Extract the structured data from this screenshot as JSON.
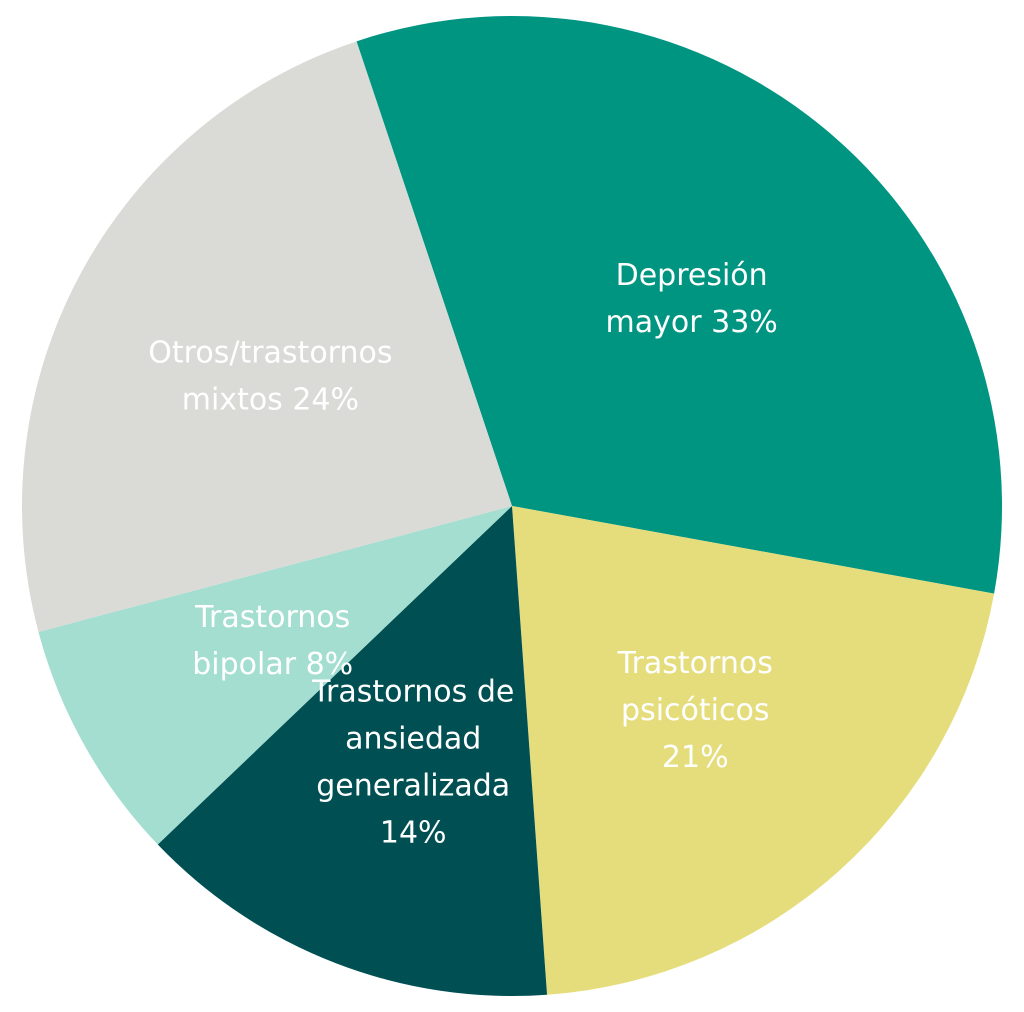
{
  "chart_data": {
    "type": "pie",
    "title": "",
    "start_angle_deg": -18.5,
    "direction": "clockwise",
    "slices": [
      {
        "label_lines": [
          "Depresión",
          "mayor 33%"
        ],
        "value": 33,
        "color": "#009581",
        "label_color": "#ffffff"
      },
      {
        "label_lines": [
          "Trastornos",
          "psicóticos",
          "21%"
        ],
        "value": 21,
        "color": "#e5dd7c",
        "label_color": "#ffffff"
      },
      {
        "label_lines": [
          "Trastornos de",
          "ansiedad",
          "generalizada",
          "14%"
        ],
        "value": 14,
        "color": "#004f53",
        "label_color": "#ffffff"
      },
      {
        "label_lines": [
          "Trastornos",
          "bipolar 8%"
        ],
        "value": 8,
        "color": "#a3ded1",
        "label_color": "#ffffff"
      },
      {
        "label_lines": [
          "Otros/trastornos",
          "mixtos 24%"
        ],
        "value": 24,
        "color": "#dadad6",
        "label_color": "#ffffff"
      }
    ]
  }
}
